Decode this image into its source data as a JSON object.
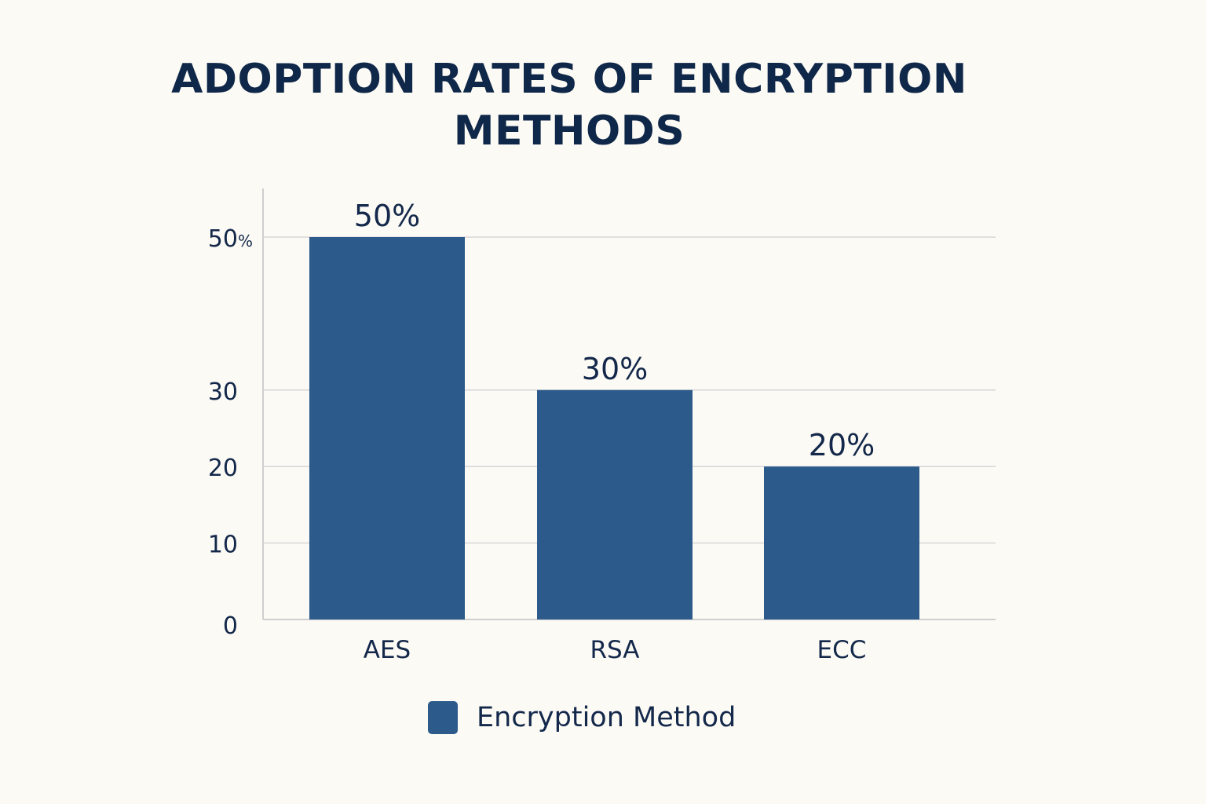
{
  "chart_data": {
    "type": "bar",
    "title_lines": [
      "ADOPTION RATES OF ENCRYPTION",
      "METHODS"
    ],
    "categories": [
      "AES",
      "RSA",
      "ECC"
    ],
    "values": [
      50,
      30,
      20
    ],
    "value_labels": [
      "50%",
      "30%",
      "20%"
    ],
    "y_ticks": [
      0,
      10,
      20,
      30,
      50
    ],
    "y_tick_labels": [
      "0",
      "10",
      "20",
      "30",
      "50%"
    ],
    "ylim": [
      0,
      50
    ],
    "grid": true,
    "legend": {
      "position": "bottom",
      "entries": [
        {
          "name": "Encryption Method"
        }
      ]
    },
    "xlabel": "",
    "ylabel": ""
  },
  "colors": {
    "bar": "#2b5a8b",
    "text": "#13284a",
    "grid": "#d6d6d6",
    "axis": "#cfcfcf",
    "background": "#fcfaf5"
  }
}
